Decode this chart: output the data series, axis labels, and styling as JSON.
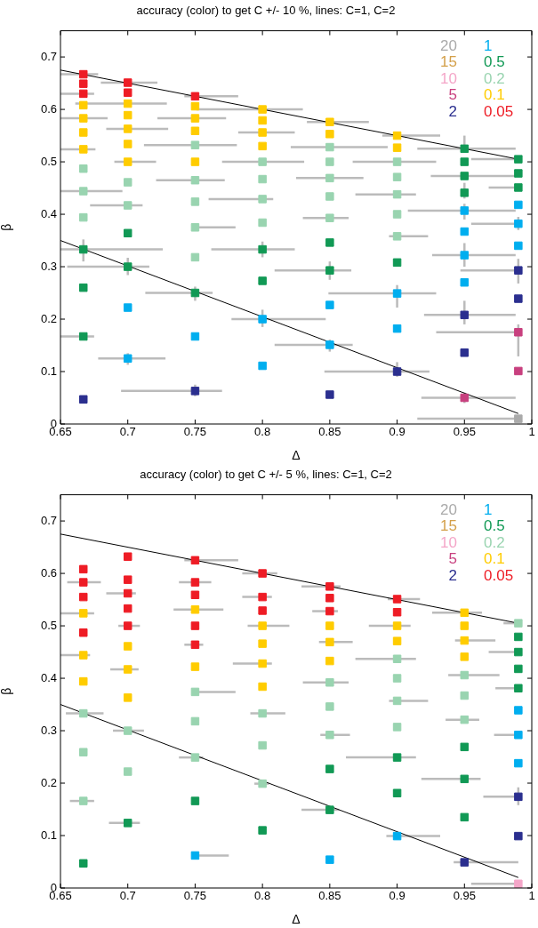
{
  "chart_data": [
    {
      "type": "scatter",
      "title": "accuracy (color) to get C +/- 10 %, lines: C=1, C=2",
      "xlabel": "Δ",
      "ylabel": "β",
      "xlim": [
        0.65,
        1
      ],
      "ylim": [
        0,
        0.75
      ],
      "xticks": [
        0.65,
        0.7,
        0.75,
        0.8,
        0.85,
        0.9,
        0.95,
        1
      ],
      "yticks": [
        0,
        0.1,
        0.2,
        0.3,
        0.4,
        0.5,
        0.6,
        0.7
      ],
      "legend": "top right",
      "series": [
        {
          "name": "20",
          "type": "scatter",
          "marker": "square",
          "color": "#aaaaaa",
          "x": [
            0.99
          ],
          "values": [
            0.01
          ],
          "xerrors": [
            [
              0.915,
              0.99
            ]
          ]
        },
        {
          "name": "15",
          "type": "scatter",
          "marker": "square",
          "color": "#d4a04a"
        },
        {
          "name": "10",
          "type": "scatter",
          "marker": "square",
          "color": "#f4a6c8"
        },
        {
          "name": "5",
          "type": "scatter",
          "marker": "square",
          "color": "#c8407f",
          "x": [
            0.95,
            0.99,
            0.99
          ],
          "values": [
            0.05,
            0.175,
            0.101
          ],
          "xerrors": [
            [
              0.918,
              0.988
            ],
            [
              0.929,
              0.99
            ],
            null
          ],
          "errors": [
            [
              0.04,
              0.06
            ],
            [
              0.129,
              0.19
            ],
            null
          ]
        },
        {
          "name": "2",
          "type": "scatter",
          "marker": "square",
          "color": "#2b2f8f",
          "x": [
            0.667,
            0.75,
            0.85,
            0.9,
            0.95,
            0.95,
            0.99,
            0.99
          ],
          "values": [
            0.047,
            0.063,
            0.056,
            0.1,
            0.208,
            0.136,
            0.293,
            0.239
          ],
          "xerrors": [
            null,
            [
              0.695,
              0.77
            ],
            null,
            [
              0.846,
              0.924
            ],
            [
              0.92,
              0.988
            ],
            null,
            [
              0.947,
              0.99
            ],
            null
          ],
          "errors": [
            null,
            [
              0.053,
              0.075
            ],
            null,
            [
              0.09,
              0.118
            ],
            [
              0.19,
              0.235
            ],
            null,
            [
              0.268,
              0.315
            ],
            null
          ]
        },
        {
          "name": "1",
          "type": "scatter",
          "marker": "square",
          "color": "#00aeef",
          "x": [
            0.7,
            0.7,
            0.75,
            0.8,
            0.8,
            0.85,
            0.85,
            0.9,
            0.9,
            0.95,
            0.95,
            0.95,
            0.95,
            0.99,
            0.99,
            0.99
          ],
          "values": [
            0.222,
            0.125,
            0.167,
            0.2,
            0.111,
            0.227,
            0.151,
            0.249,
            0.182,
            0.407,
            0.367,
            0.322,
            0.27,
            0.418,
            0.382,
            0.34
          ],
          "xerrors": [
            null,
            [
              0.678,
              0.728
            ],
            null,
            [
              0.777,
              0.847
            ],
            null,
            null,
            [
              0.809,
              0.867
            ],
            [
              0.849,
              0.929
            ],
            null,
            [
              0.908,
              0.988
            ],
            null,
            [
              0.926,
              0.988
            ],
            null,
            null,
            [
              0.955,
              0.99
            ],
            null
          ],
          "errors": [
            null,
            [
              0.113,
              0.135
            ],
            null,
            [
              0.185,
              0.218
            ],
            null,
            null,
            [
              0.138,
              0.161
            ],
            [
              0.222,
              0.265
            ],
            null,
            [
              0.39,
              0.42
            ],
            null,
            [
              0.3,
              0.345
            ],
            null,
            null,
            [
              0.37,
              0.395
            ],
            null
          ]
        },
        {
          "name": "0.5",
          "type": "scatter",
          "marker": "square",
          "color": "#119955",
          "x": [
            0.667,
            0.667,
            0.667,
            0.7,
            0.7,
            0.75,
            0.8,
            0.8,
            0.85,
            0.85,
            0.9,
            0.95,
            0.95,
            0.95,
            0.95,
            0.99,
            0.99,
            0.99
          ],
          "values": [
            0.333,
            0.26,
            0.167,
            0.364,
            0.3,
            0.25,
            0.333,
            0.273,
            0.346,
            0.293,
            0.308,
            0.525,
            0.5,
            0.473,
            0.441,
            0.505,
            0.478,
            0.451
          ],
          "xerrors": [
            [
              0.65,
              0.726
            ],
            null,
            [
              0.65,
              0.675
            ],
            null,
            [
              0.655,
              0.716
            ],
            [
              0.713,
              0.763
            ],
            [
              0.762,
              0.824
            ],
            null,
            null,
            [
              0.809,
              0.866
            ],
            null,
            [
              0.915,
              0.988
            ],
            null,
            [
              0.925,
              0.988
            ],
            null,
            [
              0.955,
              0.99
            ],
            null,
            [
              0.968,
              0.99
            ]
          ],
          "errors": [
            [
              0.31,
              0.352
            ],
            null,
            null,
            null,
            [
              0.284,
              0.317
            ],
            [
              0.235,
              0.262
            ],
            [
              0.318,
              0.348
            ],
            null,
            null,
            [
              0.275,
              0.31
            ],
            null,
            [
              0.525,
              0.55
            ],
            null,
            null,
            [
              0.43,
              0.46
            ],
            null,
            null,
            null
          ]
        },
        {
          "name": "0.2",
          "type": "scatter",
          "marker": "square",
          "color": "#99d4b0",
          "x": [
            0.667,
            0.667,
            0.667,
            0.7,
            0.7,
            0.75,
            0.75,
            0.75,
            0.75,
            0.75,
            0.8,
            0.8,
            0.8,
            0.8,
            0.85,
            0.85,
            0.85,
            0.85,
            0.85,
            0.9,
            0.9,
            0.9,
            0.9,
            0.9
          ],
          "values": [
            0.487,
            0.444,
            0.394,
            0.461,
            0.417,
            0.532,
            0.465,
            0.424,
            0.375,
            0.318,
            0.5,
            0.467,
            0.429,
            0.384,
            0.528,
            0.5,
            0.469,
            0.434,
            0.393,
            0.5,
            0.471,
            0.438,
            0.4,
            0.358
          ],
          "xerrors": [
            null,
            [
              0.65,
              0.696
            ],
            null,
            null,
            [
              0.672,
              0.711
            ],
            [
              0.712,
              0.781
            ],
            [
              0.721,
              0.772
            ],
            null,
            [
              0.748,
              0.78
            ],
            null,
            [
              0.77,
              0.831
            ],
            null,
            [
              0.76,
              0.808
            ],
            null,
            [
              0.821,
              0.893
            ],
            null,
            [
              0.825,
              0.875
            ],
            null,
            [
              0.83,
              0.864
            ],
            [
              0.867,
              0.929
            ],
            null,
            [
              0.869,
              0.914
            ],
            null,
            [
              0.894,
              0.923
            ]
          ]
        },
        {
          "name": "0.1",
          "type": "scatter",
          "marker": "square",
          "color": "#ffcc00",
          "x": [
            0.667,
            0.667,
            0.667,
            0.667,
            0.7,
            0.7,
            0.7,
            0.7,
            0.7,
            0.75,
            0.75,
            0.75,
            0.75,
            0.8,
            0.8,
            0.8,
            0.8,
            0.85,
            0.85,
            0.9,
            0.9
          ],
          "values": [
            0.608,
            0.583,
            0.556,
            0.524,
            0.611,
            0.589,
            0.563,
            0.534,
            0.5,
            0.606,
            0.583,
            0.559,
            0.5,
            0.6,
            0.579,
            0.556,
            0.53,
            0.576,
            0.553,
            0.55,
            0.527
          ],
          "xerrors": [
            null,
            [
              0.65,
              0.685
            ],
            null,
            [
              0.65,
              0.676
            ],
            [
              0.661,
              0.729
            ],
            null,
            [
              0.684,
              0.73
            ],
            null,
            [
              0.69,
              0.721
            ],
            null,
            [
              0.722,
              0.773
            ],
            null,
            null,
            [
              0.751,
              0.83
            ],
            null,
            [
              0.782,
              0.824
            ],
            null,
            [
              0.833,
              0.879
            ],
            null,
            [
              0.889,
              0.932
            ],
            null
          ]
        },
        {
          "name": "0.05",
          "type": "scatter",
          "marker": "square",
          "color": "#ee1c25",
          "x": [
            0.667,
            0.667,
            0.667,
            0.7,
            0.7,
            0.75
          ],
          "values": [
            0.667,
            0.649,
            0.63,
            0.651,
            0.632,
            0.625
          ],
          "xerrors": [
            [
              0.65,
              0.678
            ],
            null,
            [
              0.65,
              0.675
            ],
            [
              0.68,
              0.722
            ],
            null,
            [
              0.742,
              0.782
            ]
          ]
        },
        {
          "type": "line",
          "marker": "none",
          "color": "#000000",
          "x": [
            0.65,
            0.99
          ],
          "values": [
            0.675,
            0.505
          ]
        },
        {
          "type": "line",
          "marker": "none",
          "color": "#000000",
          "x": [
            0.65,
            0.99
          ],
          "values": [
            0.35,
            0.02
          ]
        }
      ]
    },
    {
      "type": "scatter",
      "title": "accuracy (color) to get C +/- 5 %, lines: C=1, C=2",
      "xlabel": "Δ",
      "ylabel": "β",
      "xlim": [
        0.65,
        1
      ],
      "ylim": [
        0,
        0.75
      ],
      "xticks": [
        0.65,
        0.7,
        0.75,
        0.8,
        0.85,
        0.9,
        0.95,
        1
      ],
      "yticks": [
        0,
        0.1,
        0.2,
        0.3,
        0.4,
        0.5,
        0.6,
        0.7
      ],
      "legend": "top right",
      "series": [
        {
          "name": "20",
          "type": "scatter",
          "marker": "square",
          "color": "#aaaaaa"
        },
        {
          "name": "15",
          "type": "scatter",
          "marker": "square",
          "color": "#d4a04a"
        },
        {
          "name": "10",
          "type": "scatter",
          "marker": "square",
          "color": "#f4a6c8",
          "x": [
            0.99
          ],
          "values": [
            0.008
          ],
          "xerrors": [
            [
              0.955,
              0.99
            ]
          ]
        },
        {
          "name": "5",
          "type": "scatter",
          "marker": "square",
          "color": "#c8407f"
        },
        {
          "name": "2",
          "type": "scatter",
          "marker": "square",
          "color": "#2b2f8f",
          "x": [
            0.95,
            0.99,
            0.99
          ],
          "values": [
            0.049,
            0.174,
            0.099
          ],
          "xerrors": [
            [
              0.942,
              0.99
            ],
            [
              0.964,
              0.99
            ],
            null
          ],
          "errors": [
            null,
            [
              0.158,
              0.192
            ],
            null
          ]
        },
        {
          "name": "1",
          "type": "scatter",
          "marker": "square",
          "color": "#00aeef",
          "x": [
            0.75,
            0.85,
            0.9,
            0.99,
            0.99,
            0.99
          ],
          "values": [
            0.062,
            0.054,
            0.099,
            0.339,
            0.292,
            0.238
          ],
          "xerrors": [
            [
              0.748,
              0.775
            ],
            null,
            [
              0.892,
              0.932
            ],
            null,
            [
              0.972,
              0.99
            ],
            null
          ]
        },
        {
          "name": "0.5",
          "type": "scatter",
          "marker": "square",
          "color": "#119955",
          "x": [
            0.667,
            0.7,
            0.75,
            0.8,
            0.85,
            0.85,
            0.9,
            0.9,
            0.95,
            0.95,
            0.95,
            0.99,
            0.99,
            0.99,
            0.99
          ],
          "values": [
            0.047,
            0.124,
            0.166,
            0.11,
            0.227,
            0.149,
            0.249,
            0.181,
            0.269,
            0.208,
            0.135,
            0.479,
            0.45,
            0.418,
            0.381
          ],
          "xerrors": [
            null,
            [
              0.686,
              0.709
            ],
            null,
            null,
            null,
            [
              0.829,
              0.857
            ],
            [
              0.862,
              0.914
            ],
            null,
            null,
            [
              0.918,
              0.962
            ],
            null,
            null,
            [
              0.968,
              0.99
            ],
            null,
            [
              0.973,
              0.99
            ]
          ]
        },
        {
          "name": "0.2",
          "type": "scatter",
          "marker": "square",
          "color": "#99d4b0",
          "x": [
            0.667,
            0.667,
            0.667,
            0.7,
            0.7,
            0.75,
            0.75,
            0.75,
            0.8,
            0.8,
            0.8,
            0.85,
            0.85,
            0.85,
            0.9,
            0.9,
            0.9,
            0.9,
            0.95,
            0.95,
            0.95,
            0.99
          ],
          "values": [
            0.333,
            0.259,
            0.166,
            0.3,
            0.222,
            0.374,
            0.318,
            0.249,
            0.333,
            0.272,
            0.199,
            0.392,
            0.346,
            0.292,
            0.437,
            0.4,
            0.357,
            0.307,
            0.406,
            0.367,
            0.321,
            0.505
          ],
          "xerrors": [
            [
              0.654,
              0.682
            ],
            null,
            [
              0.657,
              0.675
            ],
            [
              0.689,
              0.712
            ],
            null,
            [
              0.75,
              0.78
            ],
            null,
            [
              0.738,
              0.756
            ],
            [
              0.791,
              0.817
            ],
            null,
            [
              0.794,
              0.805
            ],
            [
              0.83,
              0.864
            ],
            null,
            [
              0.843,
              0.865
            ],
            [
              0.869,
              0.914
            ],
            null,
            [
              0.894,
              0.923
            ],
            null,
            [
              0.938,
              0.976
            ],
            null,
            [
              0.936,
              0.961
            ],
            [
              0.979,
              0.99
            ]
          ]
        },
        {
          "name": "0.1",
          "type": "scatter",
          "marker": "square",
          "color": "#ffcc00",
          "x": [
            0.667,
            0.667,
            0.667,
            0.7,
            0.7,
            0.7,
            0.75,
            0.75,
            0.8,
            0.8,
            0.8,
            0.8,
            0.85,
            0.85,
            0.85,
            0.9,
            0.9,
            0.95,
            0.95,
            0.95,
            0.95
          ],
          "values": [
            0.524,
            0.444,
            0.394,
            0.461,
            0.417,
            0.363,
            0.531,
            0.422,
            0.5,
            0.466,
            0.428,
            0.384,
            0.5,
            0.469,
            0.433,
            0.5,
            0.471,
            0.525,
            0.5,
            0.472,
            0.441
          ],
          "xerrors": [
            [
              0.65,
              0.675
            ],
            [
              0.65,
              0.672
            ],
            null,
            null,
            [
              0.687,
              0.708
            ],
            null,
            [
              0.734,
              0.771
            ],
            null,
            [
              0.789,
              0.82
            ],
            null,
            [
              0.778,
              0.807
            ],
            null,
            null,
            [
              0.842,
              0.867
            ],
            null,
            [
              0.879,
              0.91
            ],
            null,
            [
              0.926,
              0.963
            ],
            null,
            [
              0.943,
              0.973
            ],
            null
          ]
        },
        {
          "name": "0.05",
          "type": "scatter",
          "marker": "square",
          "color": "#ee1c25",
          "x": [
            0.667,
            0.667,
            0.667,
            0.667,
            0.7,
            0.7,
            0.7,
            0.7,
            0.7,
            0.75,
            0.75,
            0.75,
            0.75,
            0.75,
            0.8,
            0.8,
            0.8,
            0.85,
            0.85,
            0.85,
            0.9,
            0.9
          ],
          "values": [
            0.608,
            0.583,
            0.555,
            0.487,
            0.632,
            0.588,
            0.562,
            0.533,
            0.5,
            0.625,
            0.583,
            0.559,
            0.5,
            0.464,
            0.6,
            0.555,
            0.529,
            0.575,
            0.553,
            0.528,
            0.551,
            0.526
          ],
          "xerrors": [
            null,
            [
              0.655,
              0.68
            ],
            null,
            null,
            null,
            null,
            [
              0.684,
              0.706
            ],
            null,
            [
              0.693,
              0.709
            ],
            [
              0.742,
              0.782
            ],
            [
              0.738,
              0.762
            ],
            null,
            null,
            [
              0.742,
              0.756
            ],
            [
              0.785,
              0.811
            ],
            [
              0.785,
              0.807
            ],
            null,
            [
              0.829,
              0.858
            ],
            null,
            [
              0.837,
              0.856
            ],
            [
              0.893,
              0.917
            ],
            null
          ]
        },
        {
          "type": "line",
          "marker": "none",
          "color": "#000000",
          "x": [
            0.65,
            0.99
          ],
          "values": [
            0.675,
            0.505
          ]
        },
        {
          "type": "line",
          "marker": "none",
          "color": "#000000",
          "x": [
            0.65,
            0.99
          ],
          "values": [
            0.35,
            0.02
          ]
        }
      ]
    }
  ]
}
